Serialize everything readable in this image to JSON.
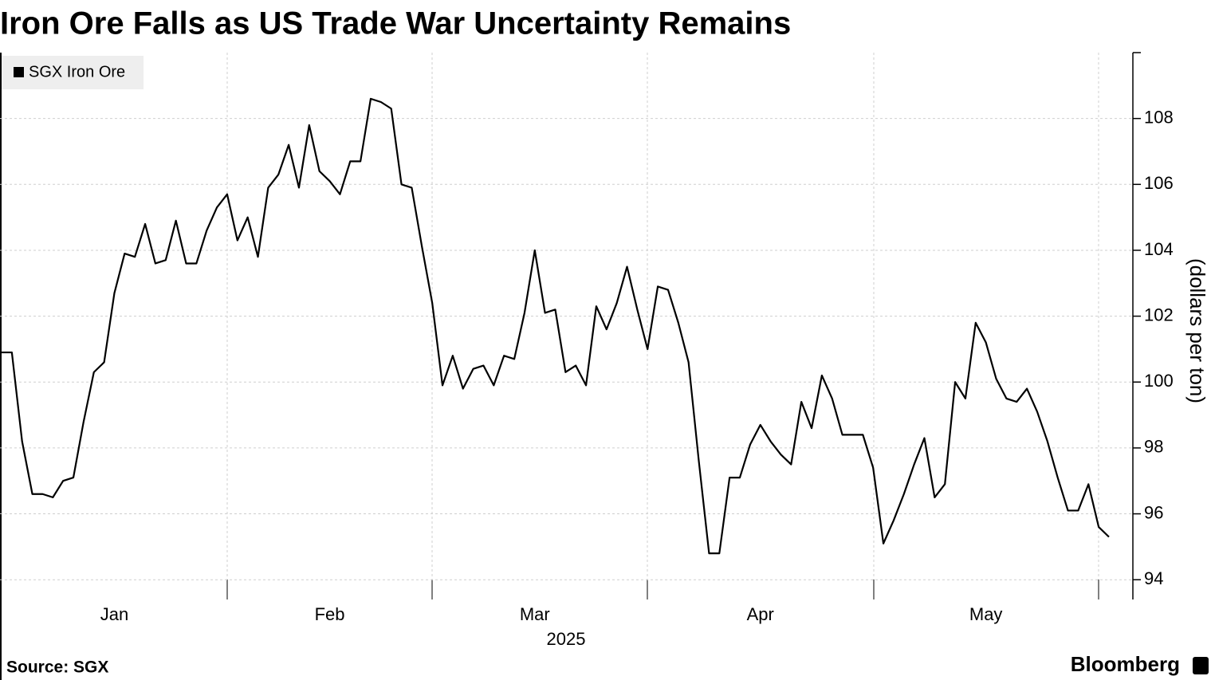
{
  "chart_data": {
    "type": "line",
    "title": "Iron Ore Falls as US Trade War Uncertainty Remains",
    "ylabel": "(dollars per ton)",
    "xlabel": "2025",
    "source": "Source: SGX",
    "brand": "Bloomberg",
    "categories": [
      null,
      null,
      null,
      null,
      null,
      null,
      null,
      null,
      null,
      null,
      null,
      "Jan",
      null,
      null,
      null,
      null,
      null,
      null,
      null,
      null,
      null,
      null,
      null,
      null,
      null,
      null,
      null,
      null,
      null,
      null,
      null,
      null,
      "Feb",
      null,
      null,
      null,
      null,
      null,
      null,
      null,
      null,
      null,
      null,
      null,
      null,
      null,
      null,
      null,
      null,
      null,
      null,
      null,
      "Mar",
      null,
      null,
      null,
      null,
      null,
      null,
      null,
      null,
      null,
      null,
      null,
      null,
      null,
      null,
      null,
      null,
      null,
      null,
      null,
      null,
      null,
      "Apr",
      null,
      null,
      null,
      null,
      null,
      null,
      null,
      null,
      null,
      null,
      null,
      null,
      null,
      null,
      null,
      null,
      null,
      null,
      null,
      null,
      null,
      "May",
      null,
      null,
      null,
      null,
      null,
      null,
      null,
      null,
      null,
      null,
      null,
      null
    ],
    "series": [
      {
        "name": "SGX Iron Ore",
        "color": "#000000",
        "values": [
          100.9,
          100.9,
          98.2,
          96.6,
          96.6,
          96.5,
          97.0,
          97.1,
          98.8,
          100.3,
          100.6,
          102.7,
          103.9,
          103.8,
          104.8,
          103.6,
          103.7,
          104.9,
          103.6,
          103.6,
          104.6,
          105.3,
          105.7,
          104.3,
          105.0,
          103.8,
          105.9,
          106.3,
          107.2,
          105.9,
          107.8,
          106.4,
          106.1,
          105.7,
          106.7,
          106.7,
          108.6,
          108.5,
          108.3,
          106.0,
          105.9,
          104.1,
          102.4,
          99.9,
          100.8,
          99.8,
          100.4,
          100.5,
          99.9,
          100.8,
          100.7,
          102.1,
          104.0,
          102.1,
          102.2,
          100.3,
          100.5,
          99.9,
          102.3,
          101.6,
          102.4,
          103.5,
          102.2,
          101.0,
          102.9,
          102.8,
          101.8,
          100.6,
          97.6,
          94.8,
          94.8,
          97.1,
          97.1,
          98.1,
          98.7,
          98.2,
          97.8,
          97.5,
          99.4,
          98.6,
          100.2,
          99.5,
          98.4,
          98.4,
          98.4,
          97.4,
          95.1,
          95.8,
          96.6,
          97.5,
          98.3,
          96.5,
          96.9,
          100.0,
          99.5,
          101.8,
          101.2,
          100.1,
          99.5,
          99.4,
          99.8,
          99.1,
          98.2,
          97.1,
          96.1,
          96.1,
          96.9,
          95.6,
          95.3
        ]
      }
    ],
    "ylim": [
      93.4,
      110
    ],
    "yticks": [
      94,
      96,
      98,
      100,
      102,
      104,
      106,
      108
    ],
    "grid": true
  }
}
